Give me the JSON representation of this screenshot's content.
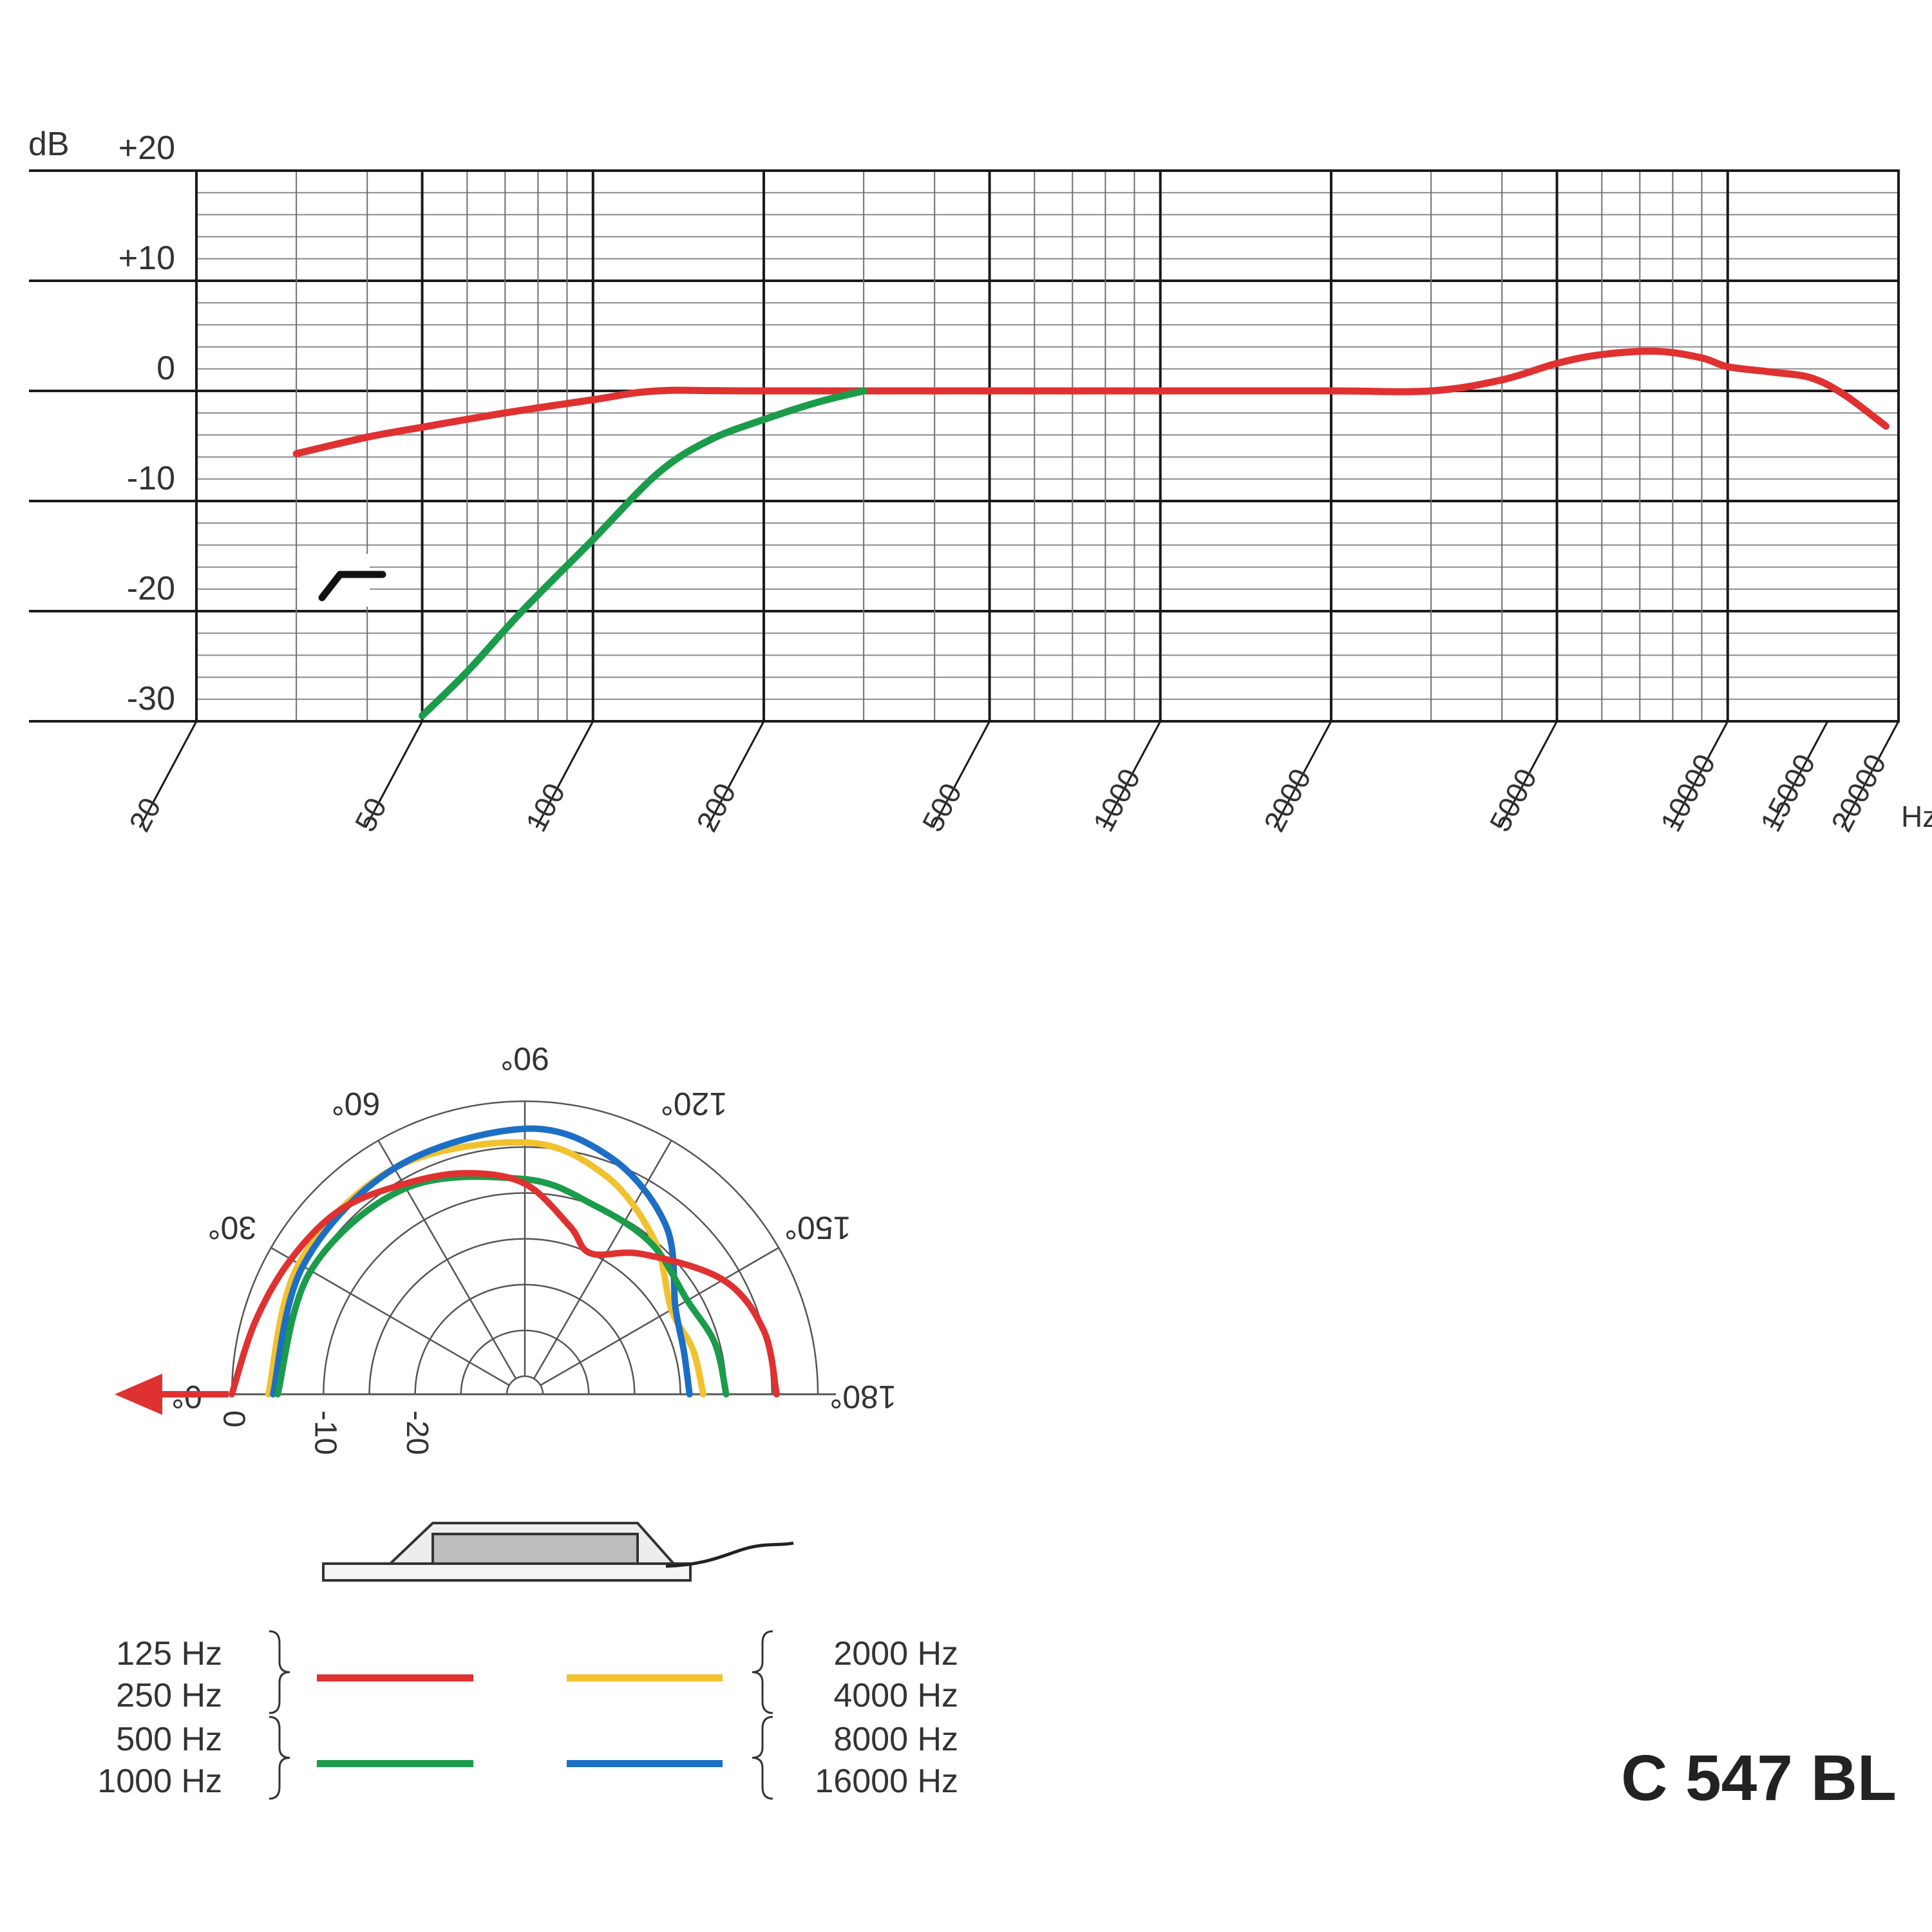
{
  "chart_data": [
    {
      "type": "line",
      "x_scale": "log",
      "y_unit_label": "dB",
      "y_ticks": [
        "+20",
        "+10",
        "0",
        "-10",
        "-20",
        "-30"
      ],
      "ylim": [
        -30,
        20
      ],
      "x_ticks": [
        "20",
        "50",
        "100",
        "200",
        "500",
        "1000",
        "2000",
        "5000",
        "10000",
        "15000",
        "20000"
      ],
      "x_unit_label": "Hz",
      "xlim": [
        20,
        20000
      ],
      "grid": true,
      "series": [
        {
          "color": "#e03131",
          "points": [
            [
              30,
              -5.7
            ],
            [
              40,
              -4.2
            ],
            [
              50,
              -3.3
            ],
            [
              70,
              -2.0
            ],
            [
              100,
              -0.8
            ],
            [
              130,
              0
            ],
            [
              200,
              0
            ],
            [
              1000,
              0
            ],
            [
              2000,
              0
            ],
            [
              3000,
              0
            ],
            [
              4000,
              1.0
            ],
            [
              5000,
              2.5
            ],
            [
              6000,
              3.3
            ],
            [
              7500,
              3.6
            ],
            [
              9000,
              3.0
            ],
            [
              10000,
              2.2
            ],
            [
              12000,
              1.7
            ],
            [
              14000,
              1.2
            ],
            [
              16000,
              -0.3
            ],
            [
              19000,
              -3.2
            ]
          ]
        },
        {
          "color": "#1a9c4a",
          "points": [
            [
              50,
              -29.5
            ],
            [
              60,
              -25.5
            ],
            [
              75,
              -20.0
            ],
            [
              100,
              -13.5
            ],
            [
              130,
              -7.5
            ],
            [
              160,
              -4.5
            ],
            [
              200,
              -2.6
            ],
            [
              250,
              -1.0
            ],
            [
              300,
              0
            ]
          ]
        }
      ],
      "filter_icon": "high-pass-filter-icon"
    },
    {
      "type": "polar",
      "angle_labels": [
        "0°",
        "30°",
        "60°",
        "90°",
        "120°",
        "150°",
        "180°"
      ],
      "radius_labels": [
        "0",
        "-10",
        "-20"
      ],
      "rlim": [
        -30,
        0
      ],
      "series": [
        {
          "color": "#e03131",
          "points": [
            [
              0,
              0
            ],
            [
              15,
              -1.5
            ],
            [
              30,
              -2.5
            ],
            [
              45,
              -3.5
            ],
            [
              60,
              -5.5
            ],
            [
              75,
              -7.0
            ],
            [
              90,
              -9.0
            ],
            [
              105,
              -13.0
            ],
            [
              115,
              -15.0
            ],
            [
              130,
              -12.0
            ],
            [
              150,
              -7.0
            ],
            [
              165,
              -5.0
            ],
            [
              180,
              -4.5
            ]
          ]
        },
        {
          "color": "#1a9c4a",
          "points": [
            [
              0,
              -5.0
            ],
            [
              30,
              -5.0
            ],
            [
              60,
              -6.0
            ],
            [
              90,
              -8.5
            ],
            [
              110,
              -10.0
            ],
            [
              130,
              -10.5
            ],
            [
              150,
              -11.5
            ],
            [
              165,
              -10.5
            ],
            [
              180,
              -10.0
            ]
          ]
        },
        {
          "color": "#f2c12e",
          "points": [
            [
              0,
              -4.0
            ],
            [
              30,
              -3.5
            ],
            [
              60,
              -3.5
            ],
            [
              90,
              -4.5
            ],
            [
              110,
              -6.5
            ],
            [
              130,
              -10.0
            ],
            [
              150,
              -13.5
            ],
            [
              165,
              -13.0
            ],
            [
              180,
              -12.5
            ]
          ]
        },
        {
          "color": "#1c6fc4",
          "points": [
            [
              0,
              -4.5
            ],
            [
              30,
              -4.0
            ],
            [
              60,
              -3.5
            ],
            [
              90,
              -3.0
            ],
            [
              110,
              -4.5
            ],
            [
              130,
              -8.0
            ],
            [
              150,
              -13.0
            ],
            [
              165,
              -14.0
            ],
            [
              180,
              -14.0
            ]
          ]
        }
      ],
      "reference_arrow_color": "#e03131"
    }
  ],
  "legend": {
    "left": [
      {
        "labels": [
          "125 Hz",
          "250 Hz"
        ],
        "color": "#e03131"
      },
      {
        "labels": [
          "500 Hz",
          "1000 Hz"
        ],
        "color": "#1a9c4a"
      }
    ],
    "right": [
      {
        "labels": [
          "2000 Hz",
          "4000 Hz"
        ],
        "color": "#f2c12e"
      },
      {
        "labels": [
          "8000 Hz",
          "16000 Hz"
        ],
        "color": "#1c6fc4"
      }
    ]
  },
  "model_name": "C 547 BL",
  "device_icon": "boundary-microphone-icon"
}
